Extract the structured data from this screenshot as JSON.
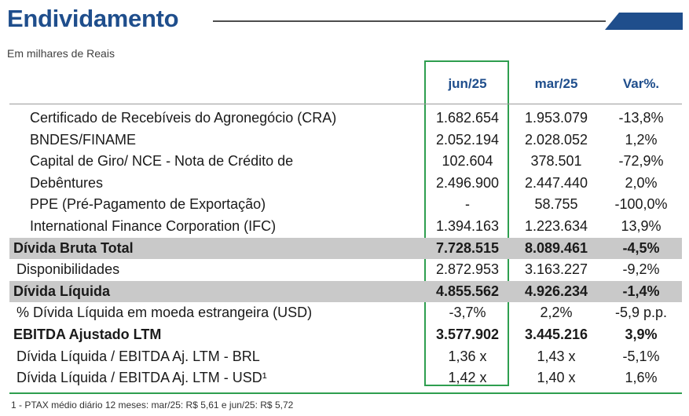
{
  "header": {
    "title": "Endividamento",
    "subtitle": "Em milhares de Reais",
    "accent_color": "#1f4e8c",
    "highlight_color": "#2e9e4f"
  },
  "columns": [
    "jun/25",
    "mar/25",
    "Var%."
  ],
  "rows": [
    {
      "label": "Certificado de Recebíveis do Agronegócio (CRA)",
      "jun25": "1.682.654",
      "mar25": "1.953.079",
      "var": "-13,8%"
    },
    {
      "label": "BNDES/FINAME",
      "jun25": "2.052.194",
      "mar25": "2.028.052",
      "var": "1,2%"
    },
    {
      "label": "Capital de Giro/ NCE - Nota de Crédito de",
      "jun25": "102.604",
      "mar25": "378.501",
      "var": "-72,9%"
    },
    {
      "label": "Debêntures",
      "jun25": "2.496.900",
      "mar25": "2.447.440",
      "var": "2,0%"
    },
    {
      "label": "PPE (Pré-Pagamento de Exportação)",
      "jun25": "-",
      "mar25": "58.755",
      "var": "-100,0%"
    },
    {
      "label": "International Finance Corporation (IFC)",
      "jun25": "1.394.163",
      "mar25": "1.223.634",
      "var": "13,9%"
    },
    {
      "label": "Dívida Bruta Total",
      "jun25": "7.728.515",
      "mar25": "8.089.461",
      "var": "-4,5%"
    },
    {
      "label": "Disponibilidades",
      "jun25": "2.872.953",
      "mar25": "3.163.227",
      "var": "-9,2%"
    },
    {
      "label": "Dívida Líquida",
      "jun25": "4.855.562",
      "mar25": "4.926.234",
      "var": "-1,4%"
    },
    {
      "label": "% Dívida Líquida em moeda estrangeira (USD)",
      "jun25": "-3,7%",
      "mar25": "2,2%",
      "var": "-5,9 p.p."
    },
    {
      "label": "EBITDA Ajustado LTM",
      "jun25": "3.577.902",
      "mar25": "3.445.216",
      "var": "3,9%"
    },
    {
      "label": "Dívida Líquida / EBITDA Aj. LTM - BRL",
      "jun25": "1,36 x",
      "mar25": "1,43 x",
      "var": "-5,1%"
    },
    {
      "label": "Dívida Líquida / EBITDA Aj. LTM - USD¹",
      "jun25": "1,42 x",
      "mar25": "1,40 x",
      "var": "1,6%"
    }
  ],
  "footnote": "1 - PTAX médio diário 12 meses: mar/25: R$ 5,61 e jun/25: R$ 5,72"
}
